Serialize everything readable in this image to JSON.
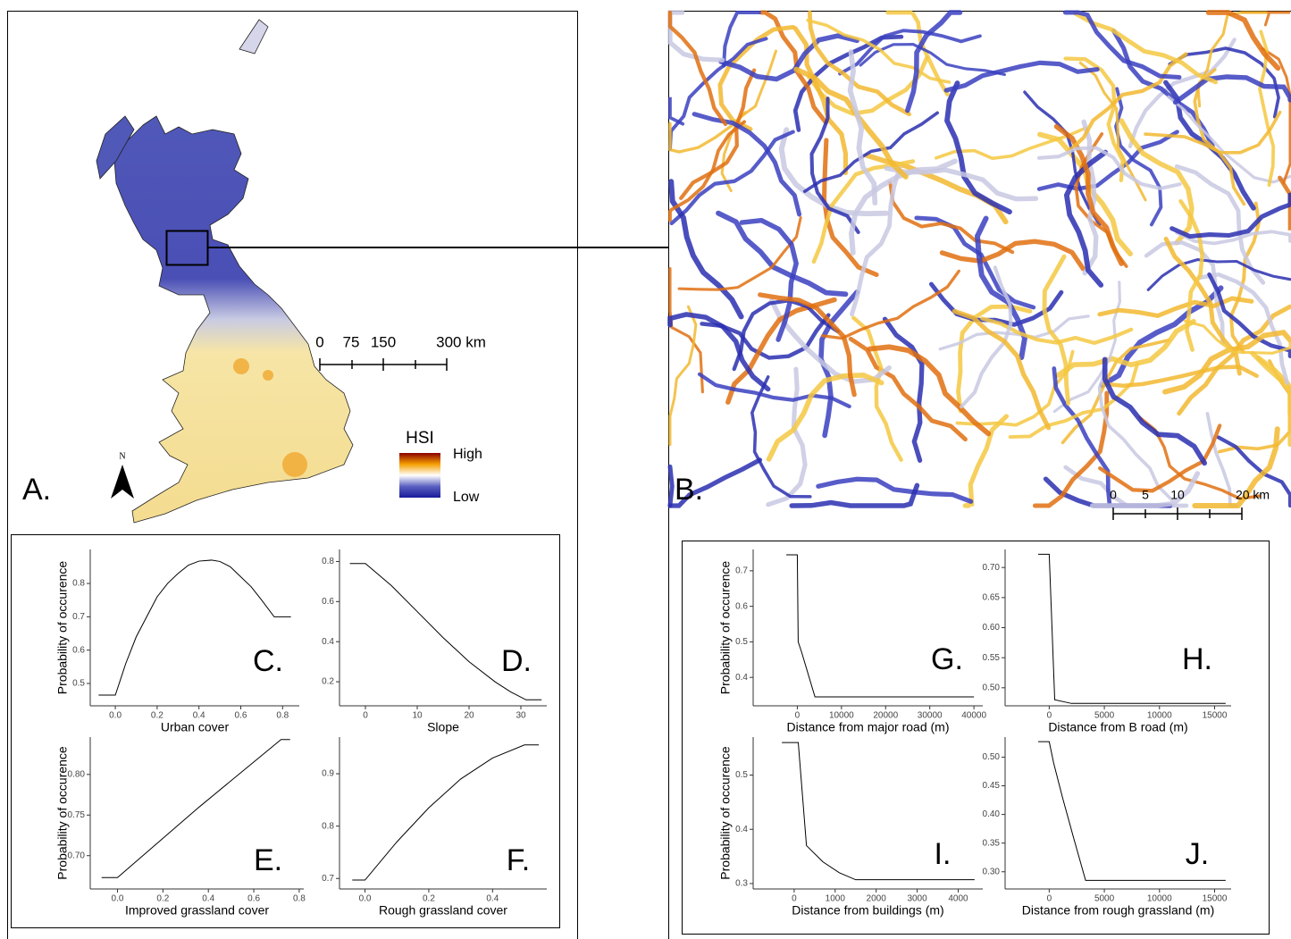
{
  "maps": [
    {
      "label": "A.",
      "north": "N",
      "scale_labels": [
        "0",
        "75",
        "150",
        "300 km"
      ],
      "legend_title": "HSI",
      "legend_high": "High",
      "legend_low": "Low"
    },
    {
      "label": "B.",
      "scale_labels": [
        "0",
        "5",
        "10",
        "20 km"
      ]
    }
  ],
  "chart_data": [
    {
      "type": "line",
      "panel_label": "C.",
      "xlabel": "Urban cover",
      "ylabel": "Probability of occurence",
      "color": "#000000",
      "x": [
        -0.08,
        0,
        0.05,
        0.1,
        0.15,
        0.2,
        0.25,
        0.3,
        0.35,
        0.4,
        0.46,
        0.5,
        0.55,
        0.6,
        0.65,
        0.7,
        0.76,
        0.84
      ],
      "values": [
        0.465,
        0.465,
        0.56,
        0.64,
        0.7,
        0.76,
        0.8,
        0.83,
        0.855,
        0.867,
        0.87,
        0.866,
        0.85,
        0.82,
        0.79,
        0.75,
        0.7,
        0.7
      ],
      "xlim": [
        -0.12,
        0.88
      ],
      "ylim": [
        0.433,
        0.902
      ],
      "xticks": [
        {
          "value": 0,
          "label": "0.0"
        },
        0.2,
        0.4,
        0.6,
        0.8
      ],
      "yticks": [
        0.5,
        0.6,
        0.7,
        0.8
      ]
    },
    {
      "type": "line",
      "panel_label": "D.",
      "xlabel": "Slope",
      "color": "#000000",
      "x": [
        -3,
        0,
        5,
        10,
        15,
        20,
        25,
        28,
        31,
        34
      ],
      "values": [
        0.79,
        0.79,
        0.68,
        0.55,
        0.42,
        0.3,
        0.2,
        0.15,
        0.11,
        0.11
      ],
      "xlim": [
        -5,
        35
      ],
      "ylim": [
        0.08,
        0.86
      ],
      "xticks": [
        0,
        10,
        20,
        30
      ],
      "yticks": [
        0.2,
        0.4,
        0.6,
        0.8
      ]
    },
    {
      "type": "line",
      "panel_label": "E.",
      "xlabel": "Improved grassland cover",
      "ylabel": "Probability of occurence",
      "color": "#000000",
      "x": [
        -0.07,
        0,
        0.36,
        0.72,
        0.76
      ],
      "values": [
        0.673,
        0.673,
        0.76,
        0.843,
        0.843
      ],
      "xlim": [
        -0.12,
        0.82
      ],
      "ylim": [
        0.659,
        0.846
      ],
      "xticks": [
        {
          "value": 0,
          "label": "0.0"
        },
        0.2,
        0.4,
        0.6,
        0.8
      ],
      "yticks": [
        {
          "value": 0.7,
          "label": "0.70"
        },
        0.75,
        {
          "value": 0.8,
          "label": "0.80"
        }
      ]
    },
    {
      "type": "line",
      "panel_label": "F.",
      "xlabel": "Rough grassland cover",
      "color": "#000000",
      "x": [
        -0.04,
        0,
        0.1,
        0.2,
        0.3,
        0.4,
        0.5,
        0.545
      ],
      "values": [
        0.697,
        0.697,
        0.77,
        0.835,
        0.89,
        0.93,
        0.955,
        0.955
      ],
      "xlim": [
        -0.08,
        0.57
      ],
      "ylim": [
        0.68,
        0.97
      ],
      "xticks": [
        {
          "value": 0,
          "label": "0.0"
        },
        0.2,
        0.4
      ],
      "yticks": [
        0.7,
        0.8,
        0.9
      ]
    },
    {
      "type": "line",
      "panel_label": "G.",
      "xlabel": "Distance from major road (m)",
      "ylabel": "Probability of occurence",
      "color": "#000000",
      "x": [
        -2500,
        0,
        200,
        1000,
        4000,
        40000
      ],
      "values": [
        0.745,
        0.745,
        0.5,
        0.47,
        0.345,
        0.345
      ],
      "xlim": [
        -10000,
        42000
      ],
      "ylim": [
        0.32,
        0.76
      ],
      "xticks": [
        0,
        10000,
        20000,
        30000,
        40000
      ],
      "yticks": [
        0.4,
        0.5,
        0.6,
        0.7
      ]
    },
    {
      "type": "line",
      "panel_label": "H.",
      "xlabel": "Distance from B road (m)",
      "color": "#000000",
      "x": [
        -1000,
        0,
        500,
        2000,
        16000
      ],
      "values": [
        0.722,
        0.722,
        0.48,
        0.474,
        0.474
      ],
      "xlim": [
        -4000,
        16500
      ],
      "ylim": [
        0.47,
        0.73
      ],
      "xticks": [
        0,
        5000,
        10000,
        15000
      ],
      "yticks": [
        {
          "value": 0.5,
          "label": "0.50"
        },
        0.55,
        {
          "value": 0.6,
          "label": "0.60"
        },
        0.65,
        {
          "value": 0.7,
          "label": "0.70"
        }
      ]
    },
    {
      "type": "line",
      "panel_label": "I.",
      "xlabel": "Distance from buildings (m)",
      "ylabel": "Probability of occurence",
      "color": "#000000",
      "x": [
        -300,
        100,
        300,
        700,
        1100,
        1500,
        4400
      ],
      "values": [
        0.56,
        0.56,
        0.37,
        0.34,
        0.32,
        0.307,
        0.307
      ],
      "xlim": [
        -1000,
        4600
      ],
      "ylim": [
        0.29,
        0.57
      ],
      "xticks": [
        0,
        1000,
        2000,
        3000,
        4000
      ],
      "yticks": [
        0.3,
        0.4,
        0.5
      ]
    },
    {
      "type": "line",
      "panel_label": "J.",
      "xlabel": "Distance from rough grassland (m)",
      "color": "#000000",
      "x": [
        -1000,
        0,
        400,
        1200,
        2200,
        3300,
        16000
      ],
      "values": [
        0.527,
        0.527,
        0.49,
        0.43,
        0.36,
        0.285,
        0.285
      ],
      "xlim": [
        -4000,
        16500
      ],
      "ylim": [
        0.27,
        0.535
      ],
      "xticks": [
        0,
        5000,
        10000,
        15000
      ],
      "yticks": [
        {
          "value": 0.3,
          "label": "0.30"
        },
        0.35,
        {
          "value": 0.4,
          "label": "0.40"
        },
        0.45,
        {
          "value": 0.5,
          "label": "0.50"
        }
      ]
    }
  ]
}
